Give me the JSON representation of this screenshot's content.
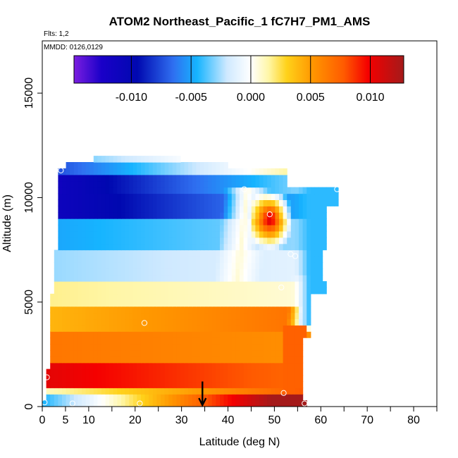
{
  "chart_data": {
    "type": "heatmap",
    "title": "ATOM2 Northeast_Pacific_1 fC7H7_PM1_AMS",
    "note_flights": "Flts: 1,2",
    "note_dates": "MMDD: 0126,0129",
    "xlabel": "Latitude (deg N)",
    "ylabel": "Altitude (m)",
    "xlim": [
      0,
      85
    ],
    "ylim": [
      0,
      17500
    ],
    "x_tick_labels": [
      "0",
      "5",
      "10",
      "20",
      "30",
      "40",
      "50",
      "60",
      "70",
      "80"
    ],
    "x_ticks": [
      0,
      5,
      10,
      20,
      30,
      40,
      50,
      60,
      70,
      80
    ],
    "x_minor_ticks": [
      15,
      25,
      35,
      45,
      55,
      65,
      75,
      85
    ],
    "y_tick_labels": [
      "0",
      "5000",
      "10000",
      "15000"
    ],
    "y_ticks": [
      0,
      5000,
      10000,
      15000
    ],
    "colorbar": {
      "range": [
        -0.0148,
        0.0128
      ],
      "tick_values": [
        -0.01,
        -0.005,
        0.0,
        0.005,
        0.01
      ],
      "tick_labels": [
        "-0.010",
        "-0.005",
        "0.000",
        "0.005",
        "0.010"
      ],
      "stops": [
        {
          "v": -0.0148,
          "c": "#7b1ee0"
        },
        {
          "v": -0.0125,
          "c": "#1a00c8"
        },
        {
          "v": -0.0095,
          "c": "#0008b0"
        },
        {
          "v": -0.0065,
          "c": "#2f6ff0"
        },
        {
          "v": -0.0045,
          "c": "#16b4ff"
        },
        {
          "v": -0.002,
          "c": "#cfe9ff"
        },
        {
          "v": 0.0,
          "c": "#ffffff"
        },
        {
          "v": 0.0015,
          "c": "#fff6a6"
        },
        {
          "v": 0.003,
          "c": "#ffd21a"
        },
        {
          "v": 0.0052,
          "c": "#ff9600"
        },
        {
          "v": 0.0078,
          "c": "#ff5a00"
        },
        {
          "v": 0.0098,
          "c": "#f50000"
        },
        {
          "v": 0.0128,
          "c": "#a41a1a"
        }
      ]
    },
    "arrow_marker_latitude": 34.5,
    "sample_points": [
      {
        "lat": 4.0,
        "alt": 11300
      },
      {
        "lat": 43.5,
        "alt": 10400
      },
      {
        "lat": 63.5,
        "alt": 10400
      },
      {
        "lat": 49.0,
        "alt": 9200
      },
      {
        "lat": 53.5,
        "alt": 7300
      },
      {
        "lat": 54.5,
        "alt": 7200
      },
      {
        "lat": 51.5,
        "alt": 5700
      },
      {
        "lat": 22.0,
        "alt": 4000
      },
      {
        "lat": 1.0,
        "alt": 1400
      },
      {
        "lat": 52.0,
        "alt": 650
      },
      {
        "lat": 0.5,
        "alt": 200
      },
      {
        "lat": 6.5,
        "alt": 150
      },
      {
        "lat": 21.0,
        "alt": 150
      },
      {
        "lat": 56.5,
        "alt": 150
      }
    ]
  }
}
